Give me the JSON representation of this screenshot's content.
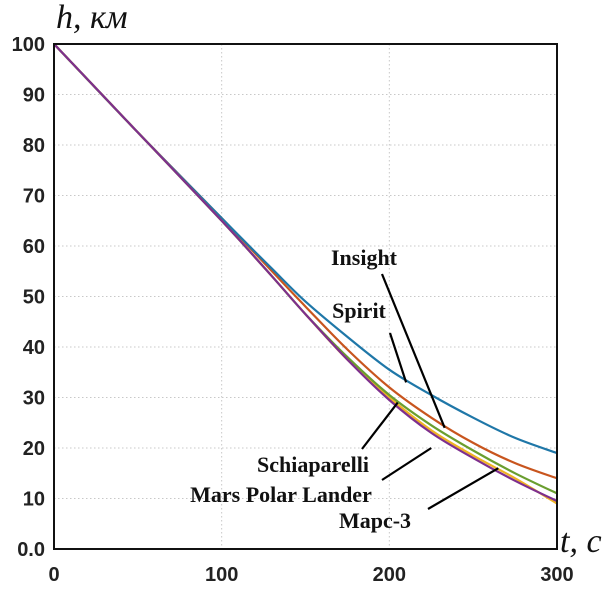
{
  "chart_data": {
    "type": "line",
    "xlabel": "t, с",
    "ylabel": "h, км",
    "xlim": [
      0,
      300
    ],
    "ylim": [
      0,
      100
    ],
    "xticks": [
      0,
      100,
      200,
      300
    ],
    "xtick_labels": [
      "0",
      "100",
      "200",
      "300"
    ],
    "yticks": [
      0,
      10,
      20,
      30,
      40,
      50,
      60,
      70,
      80,
      90,
      100
    ],
    "ytick_labels": [
      "0.0",
      "10",
      "20",
      "30",
      "40",
      "50",
      "60",
      "70",
      "80",
      "90",
      "100"
    ],
    "grid": true,
    "x": [
      0,
      50,
      100,
      130,
      150,
      175,
      200,
      225,
      250,
      275,
      300
    ],
    "series": [
      {
        "name": "Insight",
        "color": "#c8551e",
        "values": [
          100,
          82.5,
          65.5,
          55,
          48,
          39.5,
          32,
          26,
          21,
          17,
          14
        ]
      },
      {
        "name": "Spirit",
        "color": "#1f77a8",
        "values": [
          100,
          82.5,
          65.5,
          55.5,
          49,
          42,
          35.5,
          30.5,
          26,
          22,
          19
        ]
      },
      {
        "name": "Schiaparelli",
        "color": "#f0b323",
        "values": [
          100,
          82.5,
          65,
          54,
          46.5,
          37.5,
          30,
          23.5,
          18.5,
          14,
          9
        ]
      },
      {
        "name": "Mars Polar Lander",
        "color": "#6a9e2f",
        "values": [
          100,
          82.5,
          65,
          54,
          46.5,
          38,
          30.5,
          24.5,
          19.5,
          15,
          11
        ]
      },
      {
        "name": "Марс-3",
        "color": "#7e2f8e",
        "values": [
          100,
          82.5,
          65,
          54,
          46.5,
          37.5,
          29.5,
          23,
          18,
          13.5,
          9.5
        ]
      }
    ],
    "annotations": [
      {
        "text": "Insight",
        "target_series": "Insight",
        "x": 233,
        "y": 24
      },
      {
        "text": "Spirit",
        "target_series": "Spirit",
        "x": 210,
        "y": 33
      },
      {
        "text": "Schiaparelli",
        "target_series": "Schiaparelli",
        "x": 205,
        "y": 29
      },
      {
        "text": "Mars Polar Lander",
        "target_series": "Mars Polar Lander",
        "x": 225,
        "y": 20
      },
      {
        "text": "Марс-3",
        "target_series": "Марс-3",
        "x": 265,
        "y": 16
      }
    ]
  }
}
